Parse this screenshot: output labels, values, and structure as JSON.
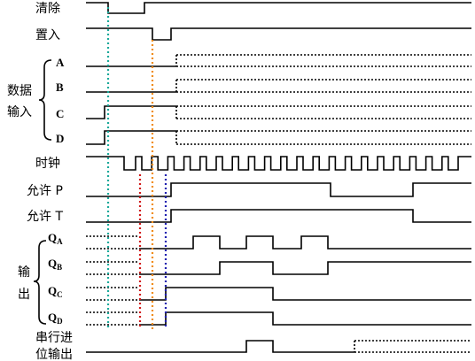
{
  "labels": {
    "clear": "清除",
    "load": "置入",
    "data_input": [
      "数据",
      "输入"
    ],
    "a": "A",
    "b": "B",
    "c": "C",
    "d": "D",
    "clock": "时钟",
    "enable_p": "允许 P",
    "enable_t": "允许 T",
    "output": [
      "输",
      "出"
    ],
    "qa": [
      "Q",
      "A"
    ],
    "qb": [
      "Q",
      "B"
    ],
    "qc": [
      "Q",
      "C"
    ],
    "qd": [
      "Q",
      "D"
    ],
    "carry": [
      "串行进",
      "位输出"
    ]
  }
}
